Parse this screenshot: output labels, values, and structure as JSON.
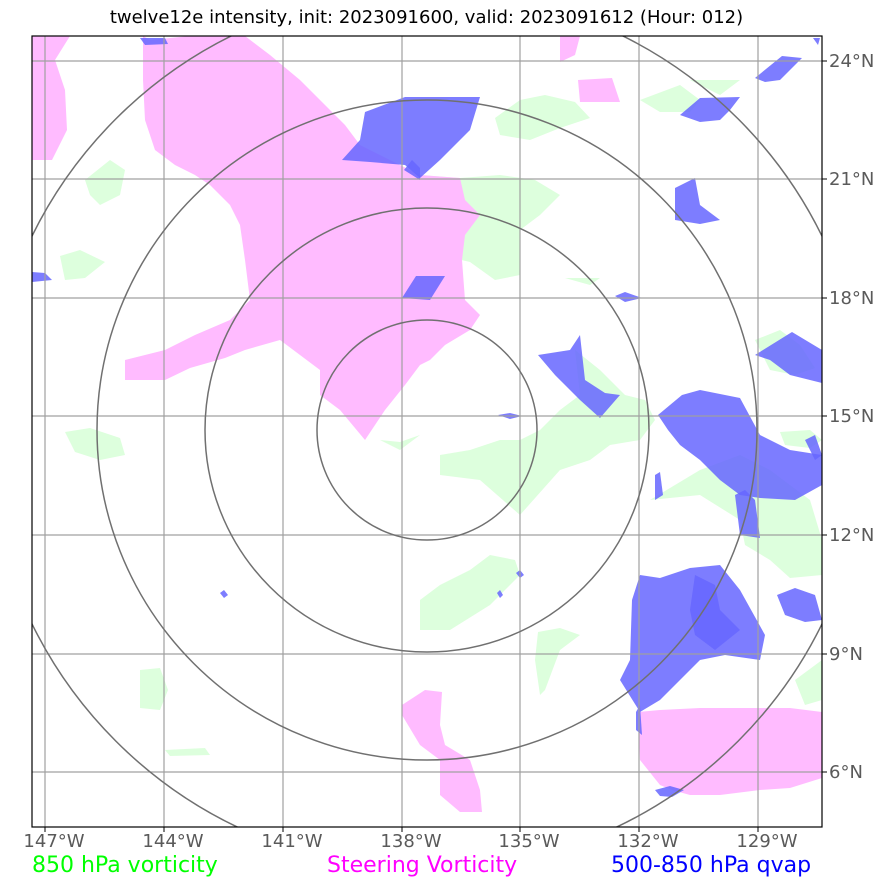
{
  "title": "twelve12e intensity, init: 2023091600, valid: 2023091612 (Hour: 012)",
  "lon_ticks": [
    "147°W",
    "144°W",
    "141°W",
    "138°W",
    "135°W",
    "132°W",
    "129°W"
  ],
  "lat_ticks": [
    "24°N",
    "21°N",
    "18°N",
    "15°N",
    "12°N",
    "9°N",
    "6°N"
  ],
  "legend": [
    {
      "label": "850 hPa vorticity",
      "color": "#00ff00"
    },
    {
      "label": "Steering Vorticity",
      "color": "#ff00ff"
    },
    {
      "label": "500-850 hPa qvap",
      "color": "#0000ff"
    }
  ],
  "colors": {
    "vorticity_850_fill": "#ddffdd",
    "steering_fill": "#ffbbff",
    "qvap_fill": "#6666ff",
    "gridline": "#a0a0a0",
    "range_ring": "#707070"
  }
}
